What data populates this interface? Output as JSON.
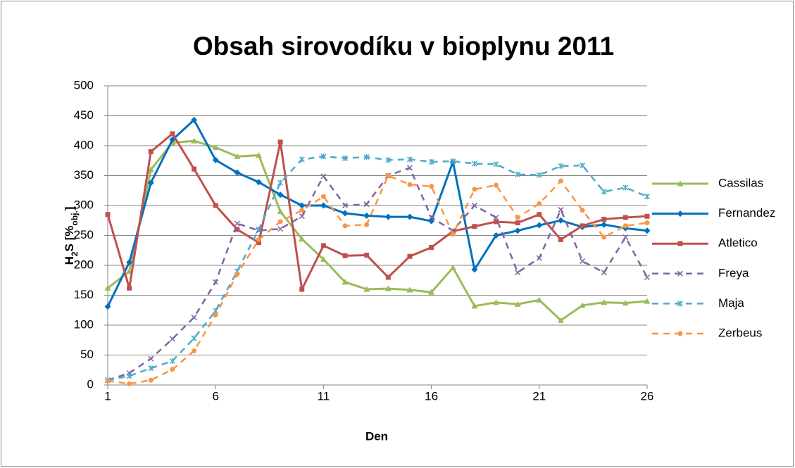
{
  "chart_data": {
    "type": "line",
    "title": "Obsah sirovodíku v bioplynu  2011",
    "x_label": "Den",
    "y_label": [
      "H",
      "2",
      "S [%",
      "obj.",
      "]"
    ],
    "x": [
      1,
      2,
      3,
      4,
      5,
      6,
      7,
      8,
      9,
      10,
      11,
      12,
      13,
      14,
      15,
      16,
      17,
      18,
      19,
      20,
      21,
      22,
      23,
      24,
      25,
      26
    ],
    "xlim": [
      1,
      26
    ],
    "xticks": [
      1,
      6,
      11,
      16,
      21,
      26
    ],
    "ylim": [
      0,
      500
    ],
    "yticks": [
      0,
      50,
      100,
      150,
      200,
      250,
      300,
      350,
      400,
      450,
      500
    ],
    "grid": true,
    "legend": "right",
    "series": [
      {
        "name": "Cassilas",
        "color": "#9bbb59",
        "marker": "triangle",
        "dashed": false,
        "values": [
          162,
          190,
          360,
          405,
          408,
          397,
          382,
          384,
          290,
          244,
          210,
          172,
          160,
          161,
          159,
          155,
          196,
          132,
          138,
          135,
          142,
          108,
          133,
          138,
          137,
          140
        ]
      },
      {
        "name": "Fernandez",
        "color": "#0070c0",
        "marker": "diamond",
        "dashed": false,
        "values": [
          131,
          205,
          338,
          410,
          443,
          376,
          355,
          339,
          318,
          300,
          300,
          287,
          283,
          281,
          281,
          274,
          373,
          193,
          250,
          258,
          267,
          275,
          264,
          268,
          262,
          258
        ]
      },
      {
        "name": "Atletico",
        "color": "#c0504d",
        "marker": "square",
        "dashed": false,
        "values": [
          285,
          162,
          390,
          420,
          361,
          300,
          260,
          238,
          406,
          160,
          233,
          216,
          217,
          180,
          215,
          230,
          257,
          265,
          273,
          271,
          285,
          243,
          266,
          277,
          280,
          282
        ]
      },
      {
        "name": "Freya",
        "color": "#8064a2",
        "marker": "x",
        "dashed": true,
        "values": [
          8,
          20,
          44,
          77,
          113,
          172,
          270,
          258,
          261,
          282,
          349,
          300,
          302,
          350,
          363,
          280,
          258,
          300,
          280,
          188,
          212,
          293,
          207,
          188,
          247,
          180
        ]
      },
      {
        "name": "Maja",
        "color": "#4bacc6",
        "marker": "star",
        "dashed": true,
        "values": [
          8,
          15,
          28,
          40,
          78,
          124,
          190,
          260,
          338,
          377,
          382,
          379,
          381,
          376,
          377,
          373,
          374,
          370,
          369,
          352,
          351,
          366,
          367,
          323,
          330,
          315
        ]
      },
      {
        "name": "Zerbeus",
        "color": "#f79646",
        "marker": "circle",
        "dashed": true,
        "values": [
          7,
          2,
          8,
          26,
          57,
          117,
          185,
          243,
          273,
          292,
          315,
          266,
          268,
          350,
          335,
          332,
          252,
          327,
          334,
          280,
          303,
          341,
          292,
          247,
          266,
          271
        ]
      }
    ]
  }
}
